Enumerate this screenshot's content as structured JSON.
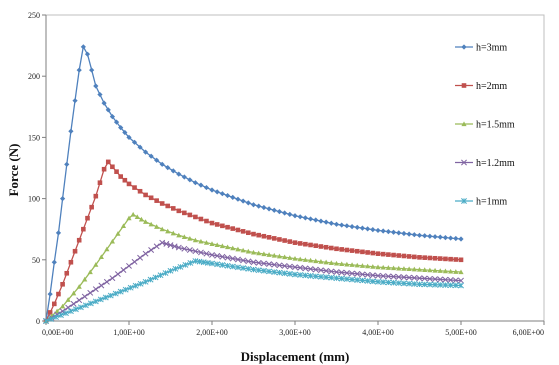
{
  "chart_data": {
    "type": "line",
    "title": "",
    "xlabel": "Displacement (mm)",
    "ylabel": "Force (N)",
    "xlim": [
      0,
      6
    ],
    "ylim": [
      0,
      250
    ],
    "xticks": [
      0,
      1,
      2,
      3,
      4,
      5,
      6
    ],
    "xtick_labels": [
      "0,00E+00",
      "1,00E+00",
      "2,00E+00",
      "3,00E+00",
      "4,00E+00",
      "5,00E+00",
      "6,00E+00"
    ],
    "yticks": [
      0,
      50,
      100,
      150,
      200,
      250
    ],
    "ytick_labels": [
      "0",
      "50",
      "100",
      "150",
      "200",
      "250"
    ],
    "grid": false,
    "legend_position": "right",
    "series": [
      {
        "name": "h=3mm",
        "color": "#4f81bd",
        "marker": "diamond",
        "peak": [
          0.45,
          224
        ],
        "points": [
          [
            0,
            0
          ],
          [
            0.05,
            22
          ],
          [
            0.1,
            48
          ],
          [
            0.15,
            72
          ],
          [
            0.2,
            100
          ],
          [
            0.25,
            128
          ],
          [
            0.3,
            155
          ],
          [
            0.35,
            180
          ],
          [
            0.4,
            205
          ],
          [
            0.45,
            224
          ],
          [
            0.5,
            218
          ],
          [
            0.55,
            205
          ],
          [
            0.6,
            192
          ],
          [
            0.7,
            178
          ],
          [
            0.8,
            167
          ],
          [
            0.9,
            158
          ],
          [
            1.0,
            150
          ],
          [
            1.2,
            138
          ],
          [
            1.4,
            128
          ],
          [
            1.6,
            120
          ],
          [
            1.8,
            113
          ],
          [
            2.0,
            107
          ],
          [
            2.5,
            95
          ],
          [
            3.0,
            86
          ],
          [
            3.5,
            79
          ],
          [
            4.0,
            74
          ],
          [
            4.5,
            70
          ],
          [
            5.0,
            67
          ]
        ]
      },
      {
        "name": "h=2mm",
        "color": "#c0504d",
        "marker": "square",
        "peak": [
          0.75,
          130
        ],
        "points": [
          [
            0,
            0
          ],
          [
            0.1,
            14
          ],
          [
            0.2,
            30
          ],
          [
            0.3,
            48
          ],
          [
            0.4,
            66
          ],
          [
            0.5,
            84
          ],
          [
            0.6,
            102
          ],
          [
            0.7,
            124
          ],
          [
            0.75,
            130
          ],
          [
            0.8,
            126
          ],
          [
            0.9,
            118
          ],
          [
            1.0,
            112
          ],
          [
            1.2,
            103
          ],
          [
            1.4,
            96
          ],
          [
            1.6,
            90
          ],
          [
            1.8,
            85
          ],
          [
            2.0,
            80
          ],
          [
            2.5,
            71
          ],
          [
            3.0,
            64
          ],
          [
            3.5,
            59
          ],
          [
            4.0,
            55
          ],
          [
            4.5,
            52
          ],
          [
            5.0,
            50
          ]
        ]
      },
      {
        "name": "h=1.5mm",
        "color": "#9bbb59",
        "marker": "triangle",
        "peak": [
          1.05,
          87
        ],
        "points": [
          [
            0,
            0
          ],
          [
            0.2,
            12
          ],
          [
            0.4,
            28
          ],
          [
            0.6,
            46
          ],
          [
            0.8,
            65
          ],
          [
            1.0,
            84
          ],
          [
            1.05,
            87
          ],
          [
            1.1,
            85
          ],
          [
            1.2,
            81
          ],
          [
            1.4,
            75
          ],
          [
            1.6,
            70
          ],
          [
            1.8,
            66
          ],
          [
            2.0,
            63
          ],
          [
            2.5,
            56
          ],
          [
            3.0,
            51
          ],
          [
            3.5,
            47
          ],
          [
            4.0,
            44
          ],
          [
            4.5,
            42
          ],
          [
            5.0,
            40
          ]
        ]
      },
      {
        "name": "h=1.2mm",
        "color": "#8064a2",
        "marker": "x",
        "peak": [
          1.4,
          64
        ],
        "points": [
          [
            0,
            0
          ],
          [
            0.2,
            8
          ],
          [
            0.4,
            17
          ],
          [
            0.6,
            26
          ],
          [
            0.8,
            35
          ],
          [
            1.0,
            45
          ],
          [
            1.2,
            55
          ],
          [
            1.4,
            64
          ],
          [
            1.5,
            62
          ],
          [
            1.6,
            60
          ],
          [
            1.8,
            57
          ],
          [
            2.0,
            54
          ],
          [
            2.5,
            48
          ],
          [
            3.0,
            44
          ],
          [
            3.5,
            40
          ],
          [
            4.0,
            37
          ],
          [
            4.5,
            35
          ],
          [
            5.0,
            33
          ]
        ]
      },
      {
        "name": "h=1mm",
        "color": "#4bacc6",
        "marker": "star",
        "peak": [
          1.8,
          49
        ],
        "points": [
          [
            0,
            0
          ],
          [
            0.3,
            8
          ],
          [
            0.6,
            16
          ],
          [
            0.9,
            24
          ],
          [
            1.2,
            32
          ],
          [
            1.5,
            41
          ],
          [
            1.8,
            49
          ],
          [
            1.9,
            48
          ],
          [
            2.0,
            47
          ],
          [
            2.5,
            42
          ],
          [
            3.0,
            38
          ],
          [
            3.5,
            35
          ],
          [
            4.0,
            32
          ],
          [
            4.5,
            30
          ],
          [
            5.0,
            29
          ]
        ]
      }
    ]
  }
}
